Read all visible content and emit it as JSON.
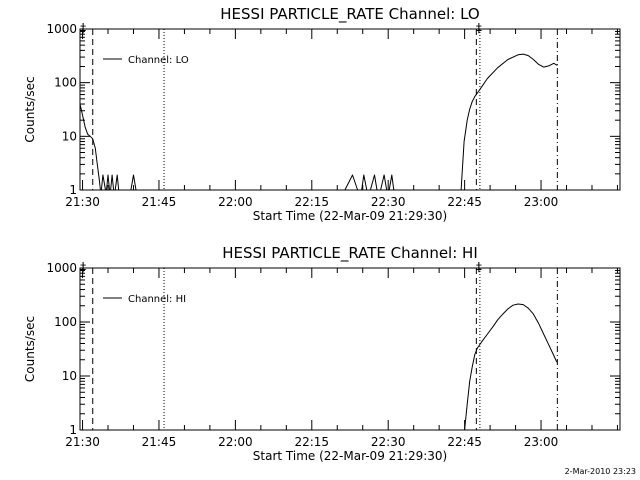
{
  "timestamp": "2-Mar-2010 23:23",
  "chart_data": [
    {
      "type": "line",
      "title": "HESSI PARTICLE_RATE Channel: LO",
      "xlabel": "Start Time (22-Mar-09 21:29:30)",
      "ylabel": "Counts/sec",
      "yscale": "log",
      "ylim": [
        1,
        1000
      ],
      "xlim_minutes": [
        0,
        106
      ],
      "x_ticks": [
        {
          "label": "21:30",
          "t": 0.5
        },
        {
          "label": "21:45",
          "t": 15.5
        },
        {
          "label": "22:00",
          "t": 30.5
        },
        {
          "label": "22:15",
          "t": 45.5
        },
        {
          "label": "22:30",
          "t": 60.5
        },
        {
          "label": "22:45",
          "t": 75.5
        },
        {
          "label": "23:00",
          "t": 90.5
        }
      ],
      "y_ticks": [
        {
          "label": "1",
          "v": 1
        },
        {
          "label": "10",
          "v": 10
        },
        {
          "label": "100",
          "v": 100
        },
        {
          "label": "1000",
          "v": 1000
        }
      ],
      "legend": {
        "label": "Channel: LO",
        "position": "top-left"
      },
      "markers": [
        {
          "t": 0.6,
          "symbol": "‡"
        },
        {
          "t": 78.3,
          "symbol": "‡"
        }
      ],
      "vlines": [
        {
          "t": 2.5,
          "style": "dashed"
        },
        {
          "t": 16.5,
          "style": "dotted"
        },
        {
          "t": 77.8,
          "style": "dashed"
        },
        {
          "t": 78.5,
          "style": "dotted"
        },
        {
          "t": 93.7,
          "style": "dashdot"
        }
      ],
      "series": [
        {
          "t": [
            0,
            0.5,
            1,
            1.5,
            2,
            2.5,
            3,
            3.4,
            3.8,
            4.0,
            4.2,
            4.5,
            5.0,
            5.2,
            5.5,
            5.8,
            6.0,
            6.3,
            6.6,
            6.9,
            7.3,
            7.6,
            7.9,
            8.2,
            8.5,
            9.0,
            10.0,
            10.5,
            11.0,
            12.0,
            15.0,
            20.0,
            25.0,
            30.0,
            35.0,
            40.0,
            45.0,
            52.0,
            53.5,
            54.5,
            55.3,
            55.7,
            56.3,
            57.0,
            57.8,
            58.3,
            59.0,
            59.7,
            60.2,
            60.7,
            61.2,
            61.6,
            62.2,
            63.0,
            66.0,
            70.0,
            74.0,
            74.8,
            75.0,
            75.4,
            76.0,
            76.5,
            77.0,
            77.5,
            78.5,
            80.0,
            82.0,
            84.0,
            86.0,
            87.0,
            88.0,
            89.0,
            90.0,
            91.0,
            92.0,
            93.0,
            93.7
          ],
          "values": [
            40,
            25,
            15,
            11,
            10,
            9,
            6,
            3,
            1.5,
            1,
            1,
            1.9,
            1,
            1,
            1.9,
            1,
            1,
            1.9,
            1,
            1,
            1.9,
            1,
            1,
            1,
            1,
            1,
            1,
            1.9,
            1,
            1,
            1,
            1,
            1,
            1,
            1,
            1,
            1,
            1,
            1.9,
            1,
            1,
            1.9,
            1,
            1,
            1.9,
            1,
            1,
            1.9,
            1,
            1,
            1.9,
            1,
            1,
            1,
            1,
            1,
            1,
            1,
            2,
            8,
            20,
            32,
            45,
            55,
            75,
            120,
            190,
            270,
            330,
            340,
            320,
            270,
            220,
            195,
            205,
            230,
            210
          ]
        }
      ]
    },
    {
      "type": "line",
      "title": "HESSI PARTICLE_RATE Channel: HI",
      "xlabel": "Start Time (22-Mar-09 21:29:30)",
      "ylabel": "Counts/sec",
      "yscale": "log",
      "ylim": [
        1,
        1000
      ],
      "xlim_minutes": [
        0,
        106
      ],
      "x_ticks": [
        {
          "label": "21:30",
          "t": 0.5
        },
        {
          "label": "21:45",
          "t": 15.5
        },
        {
          "label": "22:00",
          "t": 30.5
        },
        {
          "label": "22:15",
          "t": 45.5
        },
        {
          "label": "22:30",
          "t": 60.5
        },
        {
          "label": "22:45",
          "t": 75.5
        },
        {
          "label": "23:00",
          "t": 90.5
        }
      ],
      "y_ticks": [
        {
          "label": "1",
          "v": 1
        },
        {
          "label": "10",
          "v": 10
        },
        {
          "label": "100",
          "v": 100
        },
        {
          "label": "1000",
          "v": 1000
        }
      ],
      "legend": {
        "label": "Channel: HI",
        "position": "top-left"
      },
      "markers": [
        {
          "t": 0.6,
          "symbol": "‡"
        },
        {
          "t": 78.3,
          "symbol": "‡"
        }
      ],
      "vlines": [
        {
          "t": 2.5,
          "style": "dashed"
        },
        {
          "t": 16.5,
          "style": "dotted"
        },
        {
          "t": 77.8,
          "style": "dashed"
        },
        {
          "t": 78.5,
          "style": "dotted"
        },
        {
          "t": 93.7,
          "style": "dashdot"
        }
      ],
      "series": [
        {
          "t": [
            75.5,
            76.0,
            76.5,
            77.0,
            77.5,
            78.0,
            79.0,
            80.0,
            81.0,
            82.0,
            83.0,
            84.0,
            85.0,
            86.0,
            87.0,
            88.0,
            89.0,
            90.0,
            91.0,
            92.0,
            93.0,
            93.6
          ],
          "values": [
            1,
            3,
            8,
            15,
            25,
            33,
            45,
            60,
            80,
            110,
            140,
            175,
            205,
            215,
            210,
            180,
            140,
            95,
            60,
            38,
            24,
            18
          ]
        }
      ]
    }
  ]
}
